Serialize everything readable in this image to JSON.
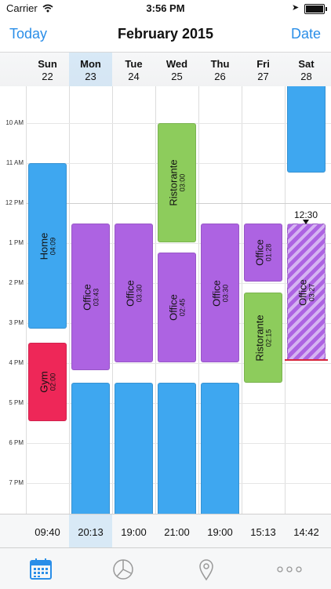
{
  "status": {
    "carrier": "Carrier",
    "time": "3:56 PM"
  },
  "nav": {
    "left": "Today",
    "title": "February 2015",
    "right": "Date"
  },
  "days": [
    {
      "name": "Sun",
      "date": "22",
      "total": "09:40"
    },
    {
      "name": "Mon",
      "date": "23",
      "total": "20:13"
    },
    {
      "name": "Tue",
      "date": "24",
      "total": "19:00"
    },
    {
      "name": "Wed",
      "date": "25",
      "total": "21:00"
    },
    {
      "name": "Thu",
      "date": "26",
      "total": "19:00"
    },
    {
      "name": "Fri",
      "date": "27",
      "total": "15:13"
    },
    {
      "name": "Sat",
      "date": "28",
      "total": "14:42"
    }
  ],
  "hours": [
    "10 AM",
    "11 AM",
    "12 PM",
    "1 PM",
    "2 PM",
    "3 PM",
    "4 PM",
    "5 PM",
    "6 PM",
    "7 PM"
  ],
  "now_label": "12:30",
  "events": [
    {
      "title": "Home",
      "duration": "04:09"
    },
    {
      "title": "Gym",
      "duration": "02:00"
    },
    {
      "title": "Office",
      "duration": "03:43"
    },
    {
      "title": "Office",
      "duration": "03:30"
    },
    {
      "title": "Ristorante",
      "duration": "03:00"
    },
    {
      "title": "Office",
      "duration": "02:45"
    },
    {
      "title": "Office",
      "duration": "03:30"
    },
    {
      "title": "Office",
      "duration": "01:28"
    },
    {
      "title": "Ristorante",
      "duration": "02:15"
    },
    {
      "title": "Office",
      "duration": "03:27"
    }
  ],
  "colors": {
    "accent": "#2a8ee8",
    "blue": "#3ea7f0",
    "green": "#8dcc5c",
    "purple": "#ad63e2",
    "red": "#ee2758",
    "now_line": "#d7263d"
  },
  "tabs": [
    {
      "icon": "calendar-icon"
    },
    {
      "icon": "pie-chart-icon"
    },
    {
      "icon": "location-pin-icon"
    },
    {
      "icon": "more-icon"
    }
  ]
}
